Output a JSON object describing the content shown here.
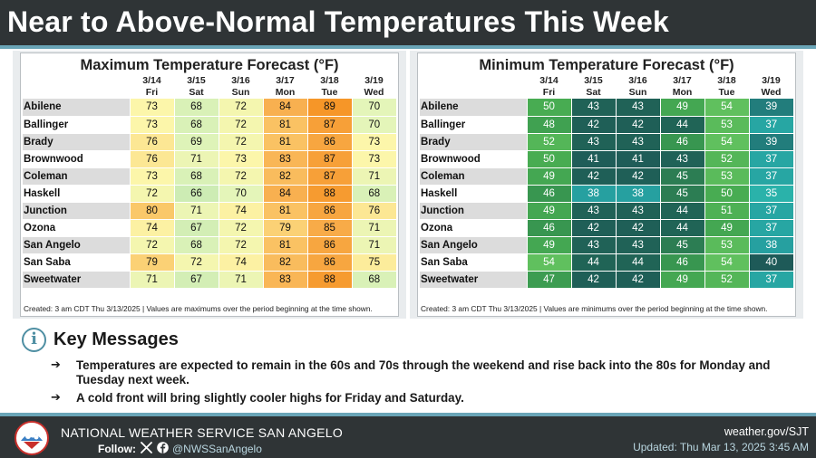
{
  "title": "Near to Above-Normal Temperatures This Week",
  "colors": {
    "title_band": "#2f3436",
    "accent_rule": "#6aa5b7",
    "info_icon": "#4f8fa3"
  },
  "max_table": {
    "title": "Maximum Temperature Forecast (°F)",
    "dates": [
      "3/14",
      "3/15",
      "3/16",
      "3/17",
      "3/18",
      "3/19"
    ],
    "days": [
      "Fri",
      "Sat",
      "Sun",
      "Mon",
      "Tue",
      "Wed"
    ],
    "rows": [
      {
        "city": "Abilene",
        "values": [
          73,
          68,
          72,
          84,
          89,
          70
        ]
      },
      {
        "city": "Ballinger",
        "values": [
          73,
          68,
          72,
          81,
          87,
          70
        ]
      },
      {
        "city": "Brady",
        "values": [
          76,
          69,
          72,
          81,
          86,
          73
        ]
      },
      {
        "city": "Brownwood",
        "values": [
          76,
          71,
          73,
          83,
          87,
          73
        ]
      },
      {
        "city": "Coleman",
        "values": [
          73,
          68,
          72,
          82,
          87,
          71
        ]
      },
      {
        "city": "Haskell",
        "values": [
          72,
          66,
          70,
          84,
          88,
          68
        ]
      },
      {
        "city": "Junction",
        "values": [
          80,
          71,
          74,
          81,
          86,
          76
        ]
      },
      {
        "city": "Ozona",
        "values": [
          74,
          67,
          72,
          79,
          85,
          71
        ]
      },
      {
        "city": "San Angelo",
        "values": [
          72,
          68,
          72,
          81,
          86,
          71
        ]
      },
      {
        "city": "San Saba",
        "values": [
          79,
          72,
          74,
          82,
          86,
          75
        ]
      },
      {
        "city": "Sweetwater",
        "values": [
          71,
          67,
          71,
          83,
          88,
          68
        ]
      }
    ],
    "footnote": "Created: 3 am CDT Thu 3/13/2025 | Values are maximums over the period beginning at the time shown."
  },
  "min_table": {
    "title": "Minimum Temperature Forecast (°F)",
    "dates": [
      "3/14",
      "3/15",
      "3/16",
      "3/17",
      "3/18",
      "3/19"
    ],
    "days": [
      "Fri",
      "Sat",
      "Sun",
      "Mon",
      "Tue",
      "Wed"
    ],
    "rows": [
      {
        "city": "Abilene",
        "values": [
          50,
          43,
          43,
          49,
          54,
          39
        ]
      },
      {
        "city": "Ballinger",
        "values": [
          48,
          42,
          42,
          44,
          53,
          37
        ]
      },
      {
        "city": "Brady",
        "values": [
          52,
          43,
          43,
          46,
          54,
          39
        ]
      },
      {
        "city": "Brownwood",
        "values": [
          50,
          41,
          41,
          43,
          52,
          37
        ]
      },
      {
        "city": "Coleman",
        "values": [
          49,
          42,
          42,
          45,
          53,
          37
        ]
      },
      {
        "city": "Haskell",
        "values": [
          46,
          38,
          38,
          45,
          50,
          35
        ]
      },
      {
        "city": "Junction",
        "values": [
          49,
          43,
          43,
          44,
          51,
          37
        ]
      },
      {
        "city": "Ozona",
        "values": [
          46,
          42,
          42,
          44,
          49,
          37
        ]
      },
      {
        "city": "San Angelo",
        "values": [
          49,
          43,
          43,
          45,
          53,
          38
        ]
      },
      {
        "city": "San Saba",
        "values": [
          54,
          44,
          44,
          46,
          54,
          40
        ]
      },
      {
        "city": "Sweetwater",
        "values": [
          47,
          42,
          42,
          49,
          52,
          37
        ]
      }
    ],
    "footnote": "Created: 3 am CDT Thu 3/13/2025 | Values are minimums over the period beginning at the time shown."
  },
  "key_messages": {
    "icon": "info-icon",
    "title": "Key Messages",
    "bullet_glyph": "➔",
    "items": [
      "Temperatures are expected to remain in the 60s and 70s through the weekend and rise back into the 80s for Monday and Tuesday next week.",
      "A cold front will bring slightly cooler highs for Friday and Saturday."
    ]
  },
  "footer": {
    "office": "NATIONAL WEATHER SERVICE SAN ANGELO",
    "follow_label": "Follow:",
    "social_icons": [
      "x-icon",
      "facebook-icon"
    ],
    "handle": "@NWSSanAngelo",
    "website": "weather.gov/SJT",
    "updated": "Updated: Thu Mar 13, 2025 3:45 AM"
  }
}
